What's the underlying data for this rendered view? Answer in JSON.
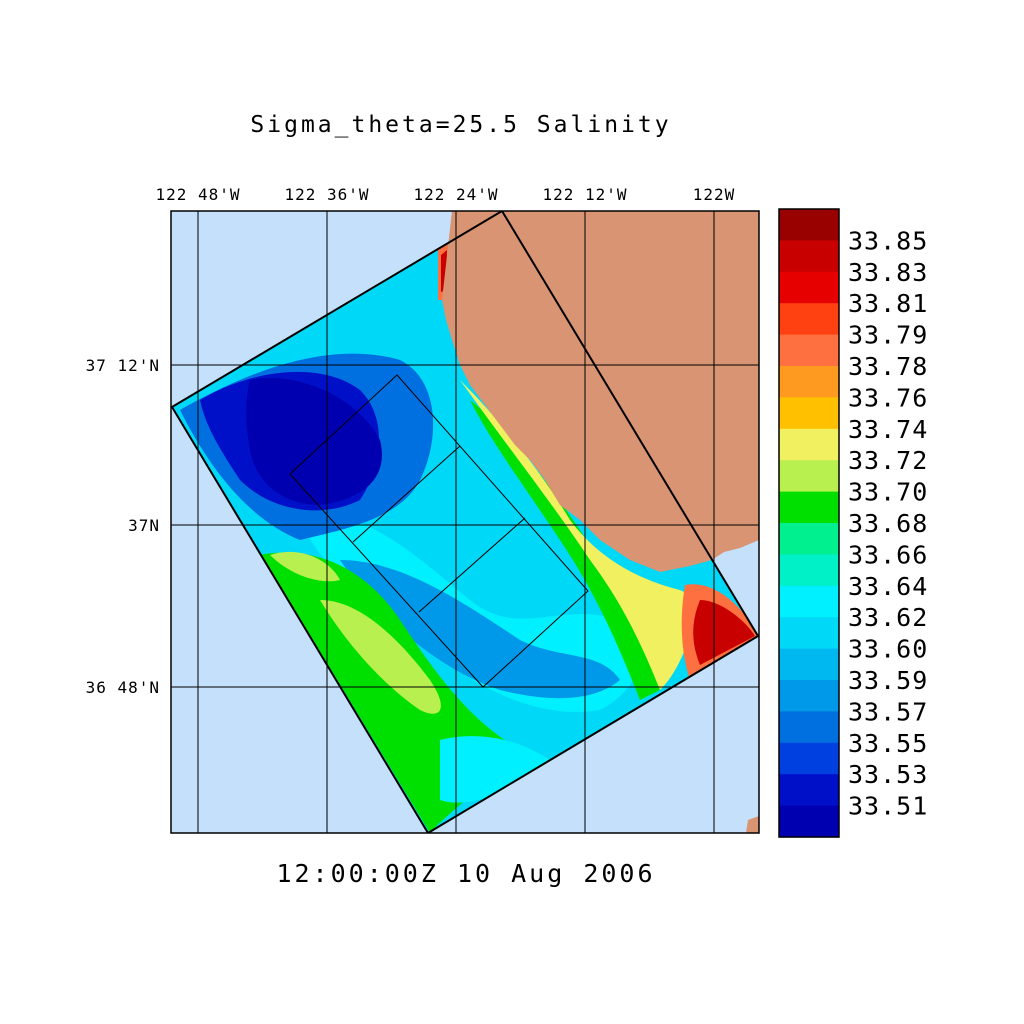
{
  "title": "Sigma_theta=25.5 Salinity",
  "timestamp": "12:00:00Z  10 Aug 2006",
  "colors": {
    "ocean_background": "#c4e0fa",
    "land": "#d99473",
    "grid": "#000000"
  },
  "map_data": {
    "type": "filled-contour map",
    "variable": "Salinity",
    "longitude_ticks": [
      "122 48'W",
      "122 36'W",
      "122 24'W",
      "122 12'W",
      "122W"
    ],
    "latitude_ticks": [
      "37 12'N",
      "37N",
      "36 48'N"
    ]
  },
  "colorbar": {
    "labels": [
      "33.85",
      "33.83",
      "33.81",
      "33.79",
      "33.78",
      "33.76",
      "33.74",
      "33.72",
      "33.70",
      "33.68",
      "33.66",
      "33.64",
      "33.62",
      "33.60",
      "33.59",
      "33.57",
      "33.55",
      "33.53",
      "33.51"
    ],
    "colors": [
      "#990000",
      "#c80000",
      "#e60000",
      "#ff4010",
      "#ff7040",
      "#ff9a20",
      "#ffc000",
      "#f0f060",
      "#b8f050",
      "#00e000",
      "#00f090",
      "#00f0c8",
      "#00f0ff",
      "#00d8f8",
      "#00b8f0",
      "#0098e8",
      "#0070e0",
      "#0040e0",
      "#0010c8",
      "#0000b0"
    ]
  }
}
